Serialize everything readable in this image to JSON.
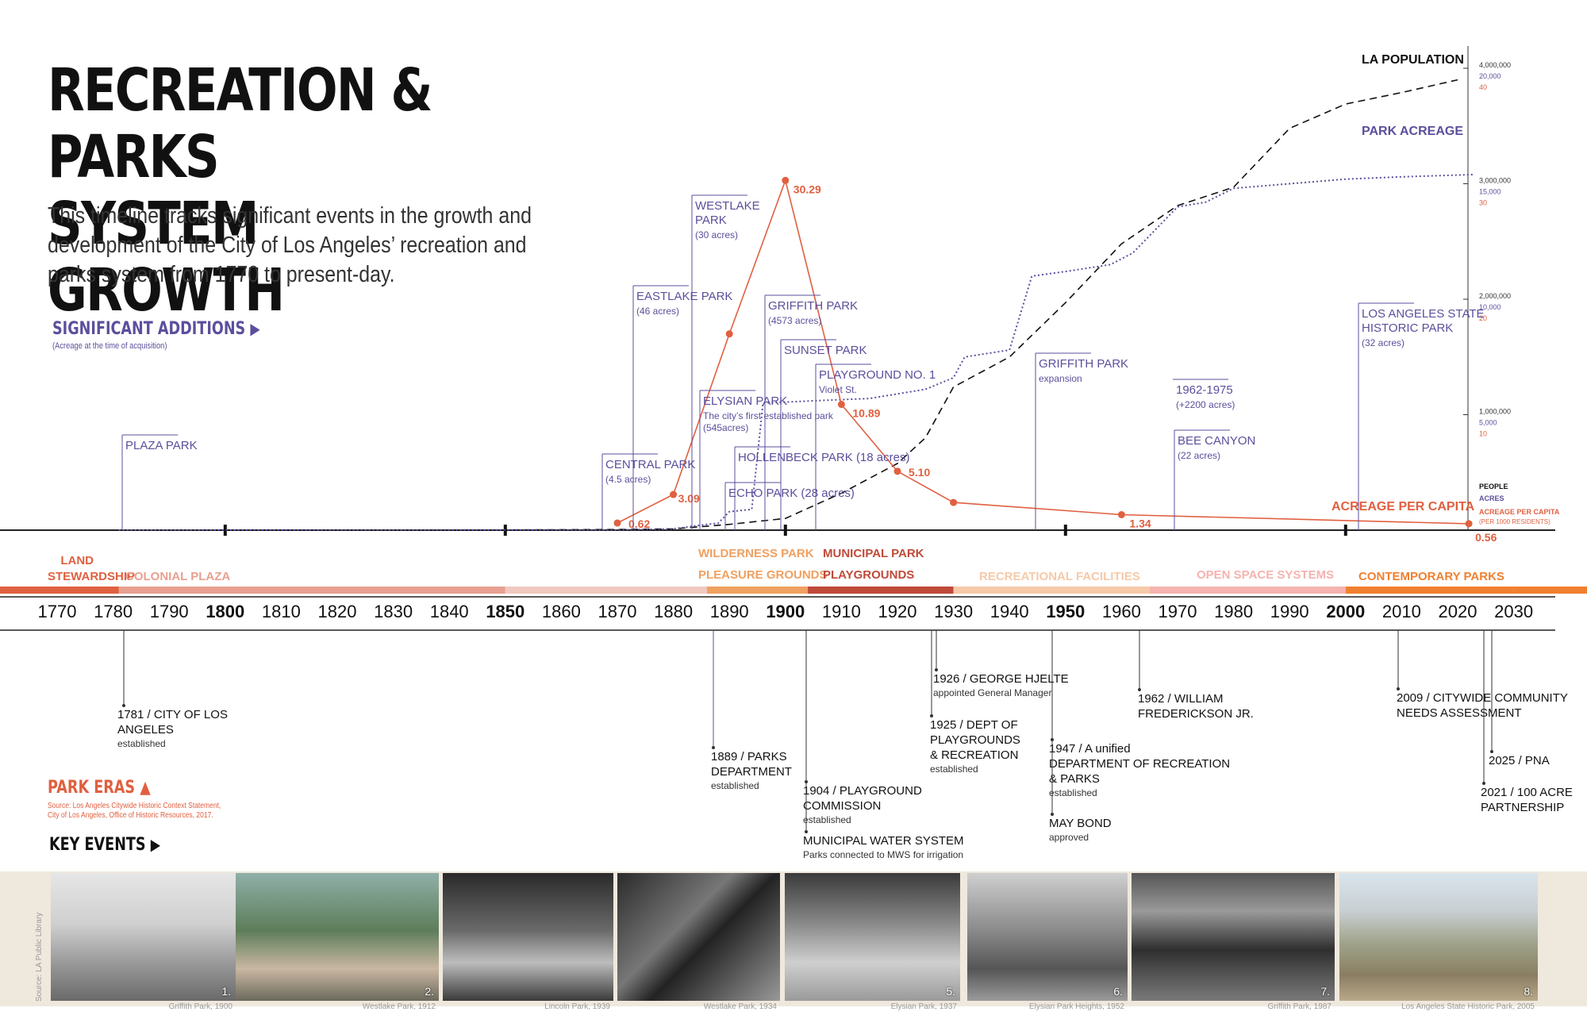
{
  "header": {
    "title_line1": "RECREATION & PARKS",
    "title_line2": "SYSTEM GROWTH",
    "intro": "This timeline tracks significant events in the growth and development of the City of Los Angeles’ recreation and parks system from 1770 to present-day."
  },
  "sections": {
    "additions": "SIGNIFICANT ADDITIONS",
    "additions_note": "(Acreage at the time of acquisition)",
    "eras": "PARK ERAS",
    "eras_note": "Source: Los Angeles Citywide Historic Context Statement, City of Los Angeles, Office of Historic Resources, 2017.",
    "events": "KEY EVENTS"
  },
  "colors": {
    "ink": "#111111",
    "purple": "#5b4f9c",
    "orange": "#e06040",
    "light_orange": "#f0a060",
    "gray": "#aaaaaa"
  },
  "chart_data": {
    "type": "line",
    "xlim": [
      1770,
      2030
    ],
    "x_ticks": [
      1770,
      1780,
      1790,
      1800,
      1810,
      1820,
      1830,
      1840,
      1850,
      1860,
      1870,
      1880,
      1890,
      1900,
      1910,
      1920,
      1930,
      1940,
      1950,
      1960,
      1970,
      1980,
      1990,
      2000,
      2010,
      2020,
      2030
    ],
    "x_ticks_bold": [
      1800,
      1850,
      1900,
      1950,
      2000
    ],
    "y_axes": [
      {
        "name": "PEOPLE",
        "ylim": [
          0,
          4000000
        ],
        "ticks": [
          "1,000,000",
          "2,000,000",
          "3,000,000",
          "4,000,000"
        ]
      },
      {
        "name": "ACRES",
        "ylim": [
          0,
          20000
        ],
        "ticks": [
          "5,000",
          "10,000",
          "15,000",
          "20,000"
        ]
      },
      {
        "name": "ACREAGE PER CAPITA",
        "unit": "(PER 1000 RESIDENTS)",
        "ylim": [
          0,
          40
        ],
        "ticks": [
          "10",
          "20",
          "30",
          "40"
        ]
      }
    ],
    "series": [
      {
        "name": "LA POPULATION",
        "style": "dashed",
        "color": "#111111",
        "points": [
          [
            1781,
            0
          ],
          [
            1850,
            1600
          ],
          [
            1870,
            6000
          ],
          [
            1880,
            11000
          ],
          [
            1890,
            50000
          ],
          [
            1900,
            102000
          ],
          [
            1910,
            320000
          ],
          [
            1920,
            577000
          ],
          [
            1925,
            800000
          ],
          [
            1930,
            1240000
          ],
          [
            1940,
            1500000
          ],
          [
            1950,
            1970000
          ],
          [
            1960,
            2480000
          ],
          [
            1970,
            2810000
          ],
          [
            1980,
            2970000
          ],
          [
            1990,
            3480000
          ],
          [
            2000,
            3690000
          ],
          [
            2010,
            3790000
          ],
          [
            2020,
            3900000
          ]
        ]
      },
      {
        "name": "PARK ACREAGE",
        "style": "dotted",
        "color": "#5b4f9c",
        "points": [
          [
            1781,
            0
          ],
          [
            1870,
            10
          ],
          [
            1880,
            60
          ],
          [
            1886,
            250
          ],
          [
            1888,
            300
          ],
          [
            1890,
            800
          ],
          [
            1894,
            900
          ],
          [
            1896,
            5500
          ],
          [
            1905,
            5600
          ],
          [
            1915,
            5700
          ],
          [
            1925,
            6100
          ],
          [
            1930,
            6600
          ],
          [
            1932,
            7500
          ],
          [
            1940,
            7800
          ],
          [
            1944,
            11000
          ],
          [
            1950,
            11200
          ],
          [
            1958,
            11500
          ],
          [
            1962,
            12000
          ],
          [
            1966,
            13000
          ],
          [
            1970,
            14000
          ],
          [
            1975,
            14200
          ],
          [
            1980,
            14800
          ],
          [
            1990,
            15000
          ],
          [
            2000,
            15200
          ],
          [
            2010,
            15300
          ],
          [
            2023,
            15400
          ]
        ]
      },
      {
        "name": "ACREAGE PER CAPITA",
        "style": "solid",
        "color": "#e06040",
        "points": [
          [
            1870,
            0.62
          ],
          [
            1880,
            3.09
          ],
          [
            1890,
            17
          ],
          [
            1900,
            30.29
          ],
          [
            1910,
            10.89
          ],
          [
            1920,
            5.1
          ],
          [
            1930,
            2.4
          ],
          [
            1960,
            1.34
          ],
          [
            2022,
            0.56
          ]
        ],
        "labels": [
          "0.62",
          "3.09",
          "30.29",
          "10.89",
          "5.10",
          "1.34",
          "0.56"
        ]
      }
    ],
    "additions": [
      {
        "name": "PLAZA PARK",
        "sub": "",
        "year": 1781
      },
      {
        "name": "CENTRAL PARK",
        "sub": "(4.5 acres)",
        "year": 1866
      },
      {
        "name": "EASTLAKE PARK",
        "sub": "(46 acres)",
        "year": 1880
      },
      {
        "name": "WESTLAKE PARK",
        "sub": "(30 acres)",
        "year": 1886
      },
      {
        "name": "ELYSIAN PARK",
        "sub": "The city’s first established park (545acres)",
        "year": 1886
      },
      {
        "name": "GRIFFITH PARK",
        "sub": "(4573 acres)",
        "year": 1896
      },
      {
        "name": "SUNSET PARK",
        "sub": "",
        "year": 1899
      },
      {
        "name": "HOLLENBECK PARK",
        "sub": "(18 acres)",
        "year": 1892
      },
      {
        "name": "ECHO PARK",
        "sub": "(28 acres)",
        "year": 1891
      },
      {
        "name": "PLAYGROUND NO. 1",
        "sub": "Violet St.",
        "year": 1904
      },
      {
        "name": "GRIFFITH PARK",
        "sub": "expansion",
        "year": 1944
      },
      {
        "name": "1962-1975",
        "sub": "(+2200 acres)",
        "year": 1962
      },
      {
        "name": "BEE CANYON",
        "sub": "(22 acres)",
        "year": 1970
      },
      {
        "name": "LOS ANGELES STATE HISTORIC PARK",
        "sub": "(32 acres)",
        "year": 2000
      }
    ],
    "eras": [
      {
        "name": "LAND STEWARDSHIP",
        "from": 1770,
        "to": 1781,
        "color": "#e06040"
      },
      {
        "name": "COLONIAL PLAZA",
        "from": 1781,
        "to": 1850,
        "color": "#e8a090"
      },
      {
        "name": "",
        "from": 1850,
        "to": 1886,
        "color": "#f0c8c0"
      },
      {
        "name": "WILDERNESS PARK",
        "from": 1886,
        "to": 1904,
        "color": "#f0a060"
      },
      {
        "name": "PLEASURE GROUNDS",
        "from": 1886,
        "to": 1904,
        "color": "#f0a060"
      },
      {
        "name": "MUNICIPAL PARK",
        "from": 1904,
        "to": 1930,
        "color": "#c04a3a"
      },
      {
        "name": "PLAYGROUNDS",
        "from": 1904,
        "to": 1930,
        "color": "#c04a3a"
      },
      {
        "name": "RECREATIONAL FACILITIES",
        "from": 1930,
        "to": 1965,
        "color": "#f6c9a8"
      },
      {
        "name": "OPEN SPACE SYSTEMS",
        "from": 1965,
        "to": 2000,
        "color": "#f5b3b0"
      },
      {
        "name": "CONTEMPORARY PARKS",
        "from": 2000,
        "to": 2030,
        "color": "#f08030"
      }
    ],
    "events": [
      {
        "year": 1781,
        "title": "1781 / CITY OF LOS ANGELES",
        "sub": "established"
      },
      {
        "year": 1889,
        "title": "1889 / PARKS DEPARTMENT",
        "sub": "established"
      },
      {
        "year": 1904,
        "title": "1904 / PLAYGROUND COMMISSION",
        "sub": "established"
      },
      {
        "year": 1904,
        "title": "MUNICIPAL WATER SYSTEM",
        "sub": "Parks connected to MWS for irrigation"
      },
      {
        "year": 1926,
        "title": "1926 / GEORGE HJELTE",
        "sub": "appointed General Manager"
      },
      {
        "year": 1925,
        "title": "1925 / DEPT OF PLAYGROUNDS & RECREATION",
        "sub": "established"
      },
      {
        "year": 1947,
        "title": "1947 / A unified DEPARTMENT OF RECREATION & PARKS",
        "sub": "established"
      },
      {
        "year": 1947,
        "title": "MAY BOND",
        "sub": "approved"
      },
      {
        "year": 1962,
        "title": "1962 / WILLIAM FREDERICKSON JR.",
        "sub": ""
      },
      {
        "year": 2009,
        "title": "2009 / CITYWIDE COMMUNITY NEEDS ASSESSMENT",
        "sub": ""
      },
      {
        "year": 2025,
        "title": "2025 / PNA",
        "sub": ""
      },
      {
        "year": 2021,
        "title": "2021 / 100 ACRE PARTNERSHIP",
        "sub": ""
      }
    ]
  },
  "photos": {
    "source": "Source: LA Public Library",
    "items": [
      {
        "num": "1.",
        "caption": "Griffith Park, 1900"
      },
      {
        "num": "2.",
        "caption": "Westlake Park, 1912"
      },
      {
        "num": "",
        "caption": "Lincoln Park, 1939"
      },
      {
        "num": "",
        "caption": "Westlake Park, 1934"
      },
      {
        "num": "5.",
        "caption": "Elysian Park, 1937"
      },
      {
        "num": "6.",
        "caption": "Elysian Park Heights, 1952"
      },
      {
        "num": "7.",
        "caption": "Griffith Park, 1987"
      },
      {
        "num": "8.",
        "caption": "Los Angeles State Historic Park, 2005"
      }
    ]
  }
}
